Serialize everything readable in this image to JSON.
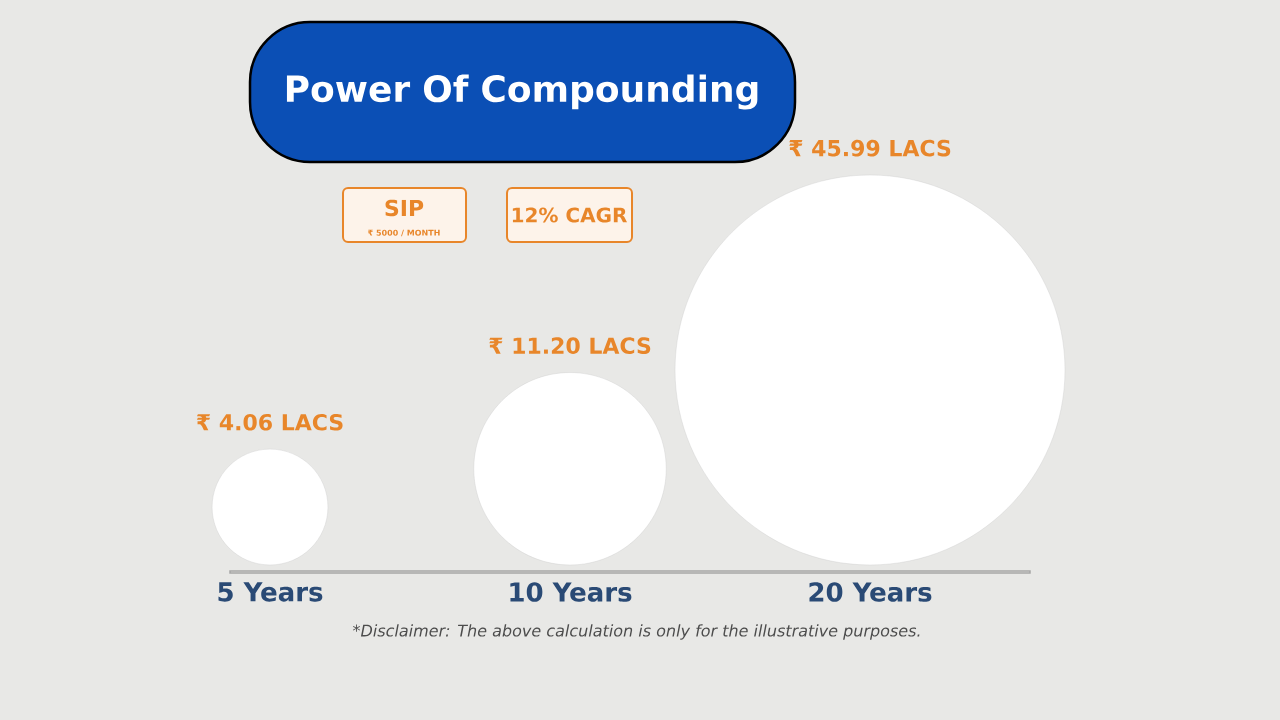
{
  "chart_data": {
    "type": "other",
    "title": "Power Of Compounding",
    "categories": [
      "5 Years",
      "10 Years",
      "20 Years"
    ],
    "values": [
      4.06,
      11.2,
      45.99
    ],
    "value_labels": [
      "₹ 4.06 LACS",
      "₹ 11.20 LACS",
      "₹ 45.99 LACS"
    ],
    "color": "#ffffff",
    "annotations": [
      "SIP",
      "₹ 5000 / MONTH",
      "12% CAGR",
      "*Disclaimer: The above calculation is only for the illustrative purposes."
    ]
  }
}
